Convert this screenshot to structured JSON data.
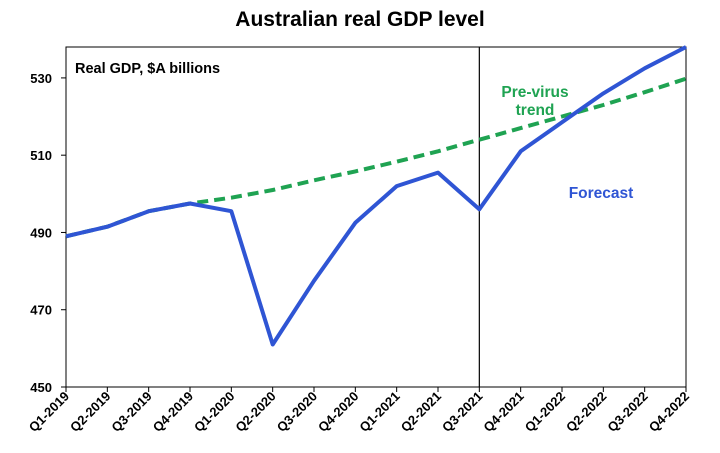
{
  "chart_data": {
    "type": "line",
    "title": "Australian real GDP level",
    "inner_label": "Real GDP, $A billions",
    "categories": [
      "Q1-2019",
      "Q2-2019",
      "Q3-2019",
      "Q4-2019",
      "Q1-2020",
      "Q2-2020",
      "Q3-2020",
      "Q4-2020",
      "Q1-2021",
      "Q2-2021",
      "Q3-2021",
      "Q4-2021",
      "Q1-2022",
      "Q2-2022",
      "Q3-2022",
      "Q4-2022"
    ],
    "ylim": [
      450,
      538
    ],
    "yticks": [
      450,
      470,
      490,
      510,
      530
    ],
    "series": [
      {
        "name": "Forecast",
        "color": "#2f55d4",
        "style": "solid",
        "values": [
          489,
          491.5,
          495.5,
          497.5,
          495.5,
          461,
          477.5,
          492.5,
          502,
          505.5,
          496,
          511,
          518.5,
          526,
          532.5,
          538
        ]
      },
      {
        "name": "Pre-virus trend",
        "label_lines": [
          "Pre-virus",
          "trend"
        ],
        "color": "#1fa352",
        "style": "dashed",
        "values": [
          489,
          491.5,
          495.5,
          497.5,
          499,
          501,
          503.5,
          505.8,
          508.3,
          511,
          514,
          517,
          520,
          523,
          526.3,
          529.8
        ]
      }
    ],
    "divider_after": "Q3-2021",
    "grid": false,
    "legend": "inline annotations"
  }
}
